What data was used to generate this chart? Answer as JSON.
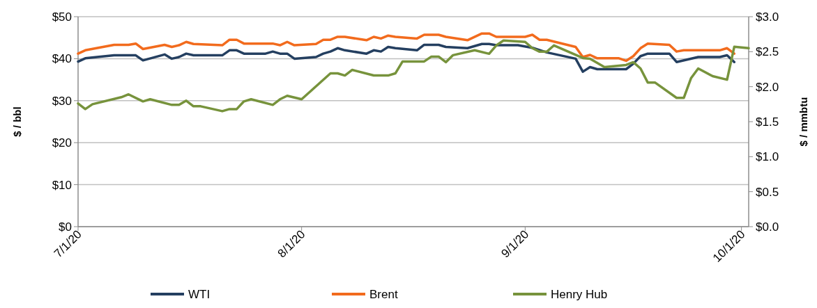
{
  "chart_data": {
    "type": "line",
    "ylabel": "$ / bbl",
    "y2label": "$ / mmbtu",
    "xlim": [
      "2020-07-01",
      "2020-10-02"
    ],
    "xticks": [
      {
        "value": "2020-07-01",
        "label": "7/1/20"
      },
      {
        "value": "2020-08-01",
        "label": "8/1/20"
      },
      {
        "value": "2020-09-01",
        "label": "9/1/20"
      },
      {
        "value": "2020-10-01",
        "label": "10/1/20"
      }
    ],
    "ylim": [
      0,
      50
    ],
    "yticks": [
      {
        "value": 0,
        "label": "$0"
      },
      {
        "value": 10,
        "label": "$10"
      },
      {
        "value": 20,
        "label": "$20"
      },
      {
        "value": 30,
        "label": "$30"
      },
      {
        "value": 40,
        "label": "$40"
      },
      {
        "value": 50,
        "label": "$50"
      }
    ],
    "y2lim": [
      0,
      3
    ],
    "y2ticks": [
      {
        "value": 0,
        "label": "$0.0"
      },
      {
        "value": 0.5,
        "label": "$0.5"
      },
      {
        "value": 1,
        "label": "$1.0"
      },
      {
        "value": 1.5,
        "label": "$1.5"
      },
      {
        "value": 2,
        "label": "$2.0"
      },
      {
        "value": 2.5,
        "label": "$2.5"
      },
      {
        "value": 3,
        "label": "$3.0"
      }
    ],
    "grid": "y",
    "legend": "bottom",
    "marker": "none",
    "line_style": "solid",
    "series": [
      {
        "name": "WTI",
        "color": "#243f60",
        "x": [
          "2020-07-01",
          "2020-07-02",
          "2020-07-06",
          "2020-07-09",
          "2020-07-10",
          "2020-07-13",
          "2020-07-14",
          "2020-07-15",
          "2020-07-16",
          "2020-07-17",
          "2020-07-21",
          "2020-07-22",
          "2020-07-23",
          "2020-07-24",
          "2020-07-27",
          "2020-07-28",
          "2020-07-29",
          "2020-07-30",
          "2020-07-31",
          "2020-08-03",
          "2020-08-04",
          "2020-08-05",
          "2020-08-06",
          "2020-08-07",
          "2020-08-10",
          "2020-08-11",
          "2020-08-12",
          "2020-08-13",
          "2020-08-14",
          "2020-08-17",
          "2020-08-18",
          "2020-08-20",
          "2020-08-21",
          "2020-08-24",
          "2020-08-26",
          "2020-08-27",
          "2020-08-28",
          "2020-08-31",
          "2020-09-02",
          "2020-09-04",
          "2020-09-08",
          "2020-09-09",
          "2020-09-10",
          "2020-09-11",
          "2020-09-15",
          "2020-09-16",
          "2020-09-17",
          "2020-09-18",
          "2020-09-21",
          "2020-09-22",
          "2020-09-25",
          "2020-09-28",
          "2020-09-29",
          "2020-09-30"
        ],
        "values": [
          39.3,
          40.1,
          40.8,
          40.8,
          39.6,
          41.0,
          40.0,
          40.4,
          41.2,
          40.8,
          40.8,
          42.0,
          42.0,
          41.2,
          41.2,
          41.7,
          41.2,
          41.2,
          40.0,
          40.4,
          41.2,
          41.7,
          42.5,
          42.0,
          41.2,
          42.0,
          41.7,
          42.8,
          42.5,
          42.0,
          43.3,
          43.3,
          42.8,
          42.5,
          43.5,
          43.5,
          43.2,
          43.2,
          42.6,
          41.5,
          40.0,
          36.9,
          38.0,
          37.5,
          37.5,
          38.8,
          40.6,
          41.2,
          41.2,
          39.2,
          40.4,
          40.4,
          40.8,
          39.2
        ]
      },
      {
        "name": "Brent",
        "color": "#f26b1d",
        "x": [
          "2020-07-01",
          "2020-07-02",
          "2020-07-06",
          "2020-07-08",
          "2020-07-09",
          "2020-07-10",
          "2020-07-13",
          "2020-07-14",
          "2020-07-15",
          "2020-07-16",
          "2020-07-17",
          "2020-07-21",
          "2020-07-22",
          "2020-07-23",
          "2020-07-24",
          "2020-07-28",
          "2020-07-29",
          "2020-07-30",
          "2020-07-31",
          "2020-08-03",
          "2020-08-04",
          "2020-08-05",
          "2020-08-06",
          "2020-08-07",
          "2020-08-10",
          "2020-08-11",
          "2020-08-12",
          "2020-08-13",
          "2020-08-14",
          "2020-08-17",
          "2020-08-18",
          "2020-08-20",
          "2020-08-21",
          "2020-08-24",
          "2020-08-26",
          "2020-08-27",
          "2020-08-28",
          "2020-08-31",
          "2020-09-01",
          "2020-09-02",
          "2020-09-03",
          "2020-09-04",
          "2020-09-08",
          "2020-09-09",
          "2020-09-10",
          "2020-09-11",
          "2020-09-14",
          "2020-09-15",
          "2020-09-16",
          "2020-09-17",
          "2020-09-18",
          "2020-09-21",
          "2020-09-22",
          "2020-09-23",
          "2020-09-28",
          "2020-09-29",
          "2020-09-30"
        ],
        "values": [
          41.2,
          42.0,
          43.3,
          43.3,
          43.6,
          42.3,
          43.3,
          42.8,
          43.2,
          44.0,
          43.5,
          43.2,
          44.5,
          44.5,
          43.6,
          43.6,
          43.2,
          44.0,
          43.2,
          43.5,
          44.5,
          44.5,
          45.2,
          45.2,
          44.4,
          45.2,
          44.8,
          45.5,
          45.2,
          44.8,
          45.7,
          45.7,
          45.2,
          44.4,
          46.0,
          46.0,
          45.2,
          45.2,
          45.2,
          45.7,
          44.5,
          44.5,
          42.8,
          40.4,
          40.9,
          40.1,
          40.1,
          39.5,
          40.6,
          42.5,
          43.6,
          43.3,
          41.7,
          42.0,
          42.0,
          42.5,
          41.2
        ]
      },
      {
        "name": "Henry Hub",
        "color": "#77933c",
        "axis": "y2",
        "x": [
          "2020-07-01",
          "2020-07-02",
          "2020-07-03",
          "2020-07-07",
          "2020-07-08",
          "2020-07-10",
          "2020-07-11",
          "2020-07-14",
          "2020-07-15",
          "2020-07-16",
          "2020-07-17",
          "2020-07-18",
          "2020-07-21",
          "2020-07-22",
          "2020-07-23",
          "2020-07-24",
          "2020-07-25",
          "2020-07-28",
          "2020-07-29",
          "2020-07-30",
          "2020-08-01",
          "2020-08-05",
          "2020-08-06",
          "2020-08-07",
          "2020-08-08",
          "2020-08-11",
          "2020-08-13",
          "2020-08-14",
          "2020-08-15",
          "2020-08-18",
          "2020-08-19",
          "2020-08-20",
          "2020-08-21",
          "2020-08-22",
          "2020-08-25",
          "2020-08-27",
          "2020-08-28",
          "2020-08-29",
          "2020-09-01",
          "2020-09-02",
          "2020-09-03",
          "2020-09-04",
          "2020-09-05",
          "2020-09-09",
          "2020-09-10",
          "2020-09-12",
          "2020-09-15",
          "2020-09-16",
          "2020-09-17",
          "2020-09-18",
          "2020-09-19",
          "2020-09-22",
          "2020-09-23",
          "2020-09-24",
          "2020-09-25",
          "2020-09-27",
          "2020-09-29",
          "2020-09-30",
          "2020-10-02"
        ],
        "values": [
          1.76,
          1.68,
          1.75,
          1.85,
          1.89,
          1.79,
          1.82,
          1.74,
          1.74,
          1.8,
          1.72,
          1.72,
          1.65,
          1.68,
          1.68,
          1.79,
          1.82,
          1.74,
          1.82,
          1.87,
          1.82,
          2.19,
          2.19,
          2.16,
          2.24,
          2.16,
          2.16,
          2.19,
          2.36,
          2.36,
          2.43,
          2.43,
          2.35,
          2.45,
          2.52,
          2.47,
          2.59,
          2.66,
          2.64,
          2.55,
          2.5,
          2.5,
          2.59,
          2.41,
          2.4,
          2.28,
          2.31,
          2.35,
          2.26,
          2.06,
          2.06,
          1.84,
          1.84,
          2.12,
          2.26,
          2.15,
          2.1,
          2.57,
          2.55
        ]
      }
    ]
  }
}
